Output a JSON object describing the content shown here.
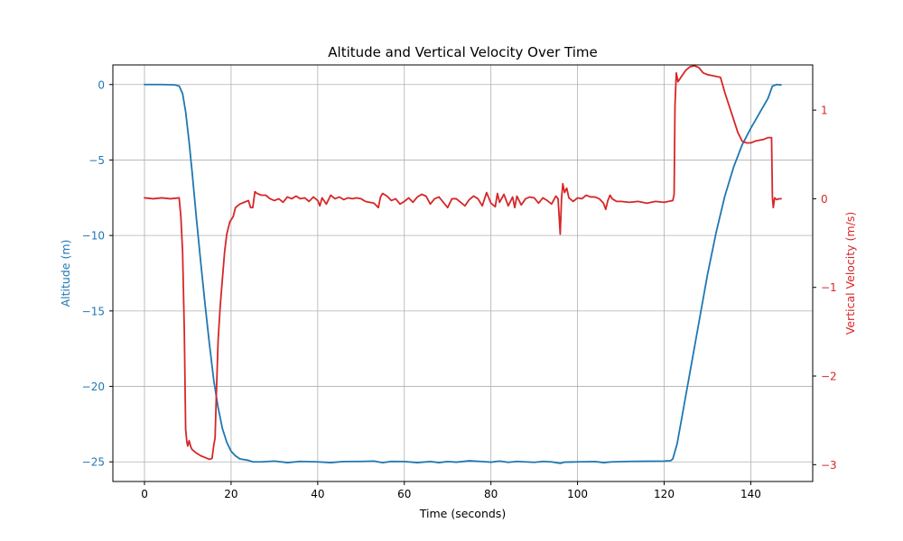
{
  "chart_data": {
    "type": "line",
    "title": "Altitude and Vertical Velocity Over Time",
    "xlabel": "Time (seconds)",
    "xlim": [
      -7.3,
      154.3
    ],
    "x_ticks": [
      0,
      20,
      40,
      60,
      80,
      100,
      120,
      140
    ],
    "grid": true,
    "colors": {
      "altitude": "#1f77b4",
      "velocity": "#d62728",
      "grid": "#b0b0b0",
      "axes": "#000000"
    },
    "y_left": {
      "label": "Altitude (m)",
      "lim": [
        -26.3,
        1.3
      ],
      "ticks": [
        0,
        -5,
        -10,
        -15,
        -20,
        -25
      ],
      "tick_labels": [
        "0",
        "−5",
        "−10",
        "−15",
        "−20",
        "−25"
      ]
    },
    "y_right": {
      "label": "Vertical Velocity (m/s)",
      "lim": [
        -3.19,
        1.51
      ],
      "ticks": [
        1,
        0,
        -1,
        -2,
        -3
      ],
      "tick_labels": [
        "1",
        "0",
        "−1",
        "−2",
        "−3"
      ]
    },
    "series": [
      {
        "axis": "left",
        "points": [
          [
            0,
            0
          ],
          [
            4,
            0
          ],
          [
            7,
            -0.02
          ],
          [
            8,
            -0.1
          ],
          [
            8.8,
            -0.6
          ],
          [
            9.5,
            -1.8
          ],
          [
            10.3,
            -3.8
          ],
          [
            11,
            -5.8
          ],
          [
            12,
            -8.9
          ],
          [
            13,
            -11.8
          ],
          [
            14,
            -14.6
          ],
          [
            15,
            -17.2
          ],
          [
            16,
            -19.6
          ],
          [
            17,
            -21.4
          ],
          [
            18,
            -22.8
          ],
          [
            19,
            -23.7
          ],
          [
            20,
            -24.3
          ],
          [
            21,
            -24.6
          ],
          [
            22,
            -24.8
          ],
          [
            23,
            -24.85
          ],
          [
            24,
            -24.9
          ],
          [
            25,
            -25.0
          ],
          [
            27,
            -25.0
          ],
          [
            30,
            -24.95
          ],
          [
            33,
            -25.05
          ],
          [
            36,
            -24.97
          ],
          [
            40,
            -25.0
          ],
          [
            43,
            -25.05
          ],
          [
            46,
            -24.98
          ],
          [
            50,
            -24.97
          ],
          [
            53,
            -24.95
          ],
          [
            55,
            -25.05
          ],
          [
            57,
            -24.97
          ],
          [
            60,
            -24.98
          ],
          [
            63,
            -25.05
          ],
          [
            66,
            -24.98
          ],
          [
            68,
            -25.05
          ],
          [
            70,
            -24.98
          ],
          [
            72,
            -25.02
          ],
          [
            75,
            -24.93
          ],
          [
            78,
            -24.98
          ],
          [
            80,
            -25.02
          ],
          [
            82,
            -24.95
          ],
          [
            84,
            -25.03
          ],
          [
            86,
            -24.97
          ],
          [
            88,
            -25.0
          ],
          [
            90,
            -25.03
          ],
          [
            92,
            -24.97
          ],
          [
            94,
            -25.0
          ],
          [
            96,
            -25.1
          ],
          [
            97,
            -25.02
          ],
          [
            100,
            -25.0
          ],
          [
            104,
            -24.98
          ],
          [
            106,
            -25.05
          ],
          [
            108,
            -25.0
          ],
          [
            112,
            -24.97
          ],
          [
            116,
            -24.96
          ],
          [
            120,
            -24.95
          ],
          [
            121.5,
            -24.92
          ],
          [
            122,
            -24.8
          ],
          [
            123,
            -23.8
          ],
          [
            124,
            -22.2
          ],
          [
            126,
            -19.0
          ],
          [
            128,
            -15.8
          ],
          [
            130,
            -12.6
          ],
          [
            132,
            -9.8
          ],
          [
            134,
            -7.4
          ],
          [
            136,
            -5.5
          ],
          [
            138,
            -4.0
          ],
          [
            140,
            -2.9
          ],
          [
            142,
            -1.9
          ],
          [
            144,
            -0.9
          ],
          [
            145,
            -0.1
          ],
          [
            146,
            0
          ],
          [
            147,
            -0.02
          ]
        ]
      },
      {
        "axis": "right",
        "points": [
          [
            0,
            0.01
          ],
          [
            2,
            0.0
          ],
          [
            4,
            0.01
          ],
          [
            6,
            0.0
          ],
          [
            8,
            0.01
          ],
          [
            8.4,
            -0.2
          ],
          [
            8.8,
            -0.6
          ],
          [
            9.2,
            -1.5
          ],
          [
            9.5,
            -2.6
          ],
          [
            9.8,
            -2.75
          ],
          [
            10,
            -2.79
          ],
          [
            10.3,
            -2.73
          ],
          [
            10.7,
            -2.8
          ],
          [
            11,
            -2.83
          ],
          [
            12,
            -2.87
          ],
          [
            13,
            -2.9
          ],
          [
            14,
            -2.92
          ],
          [
            15,
            -2.94
          ],
          [
            15.6,
            -2.93
          ],
          [
            16,
            -2.78
          ],
          [
            16.3,
            -2.7
          ],
          [
            16.6,
            -2.2
          ],
          [
            17,
            -1.6
          ],
          [
            17.5,
            -1.2
          ],
          [
            18,
            -0.9
          ],
          [
            18.5,
            -0.6
          ],
          [
            19,
            -0.4
          ],
          [
            19.7,
            -0.26
          ],
          [
            20.5,
            -0.2
          ],
          [
            21,
            -0.1
          ],
          [
            22,
            -0.06
          ],
          [
            23,
            -0.04
          ],
          [
            24,
            -0.02
          ],
          [
            24.5,
            -0.1
          ],
          [
            25,
            -0.1
          ],
          [
            25.5,
            0.08
          ],
          [
            26,
            0.06
          ],
          [
            27,
            0.04
          ],
          [
            28,
            0.04
          ],
          [
            29,
            0.0
          ],
          [
            30,
            -0.02
          ],
          [
            31,
            0.0
          ],
          [
            32,
            -0.04
          ],
          [
            33,
            0.02
          ],
          [
            34,
            0.0
          ],
          [
            35,
            0.03
          ],
          [
            36,
            0.0
          ],
          [
            37,
            0.01
          ],
          [
            38,
            -0.03
          ],
          [
            39,
            0.02
          ],
          [
            40,
            -0.02
          ],
          [
            40.5,
            -0.08
          ],
          [
            41,
            0.01
          ],
          [
            42,
            -0.06
          ],
          [
            43,
            0.04
          ],
          [
            44,
            0.0
          ],
          [
            45,
            0.02
          ],
          [
            46,
            -0.01
          ],
          [
            47,
            0.01
          ],
          [
            48,
            0.0
          ],
          [
            49,
            0.01
          ],
          [
            50,
            0.0
          ],
          [
            51,
            -0.03
          ],
          [
            52,
            -0.04
          ],
          [
            53,
            -0.05
          ],
          [
            54,
            -0.1
          ],
          [
            54.5,
            0.02
          ],
          [
            55,
            0.06
          ],
          [
            56,
            0.03
          ],
          [
            57,
            -0.02
          ],
          [
            58,
            0.0
          ],
          [
            59,
            -0.06
          ],
          [
            60,
            -0.03
          ],
          [
            61,
            0.01
          ],
          [
            62,
            -0.04
          ],
          [
            63,
            0.02
          ],
          [
            64,
            0.05
          ],
          [
            65,
            0.03
          ],
          [
            66,
            -0.06
          ],
          [
            67,
            0.0
          ],
          [
            68,
            0.02
          ],
          [
            69,
            -0.04
          ],
          [
            70,
            -0.1
          ],
          [
            71,
            0.0
          ],
          [
            72,
            0.0
          ],
          [
            73,
            -0.04
          ],
          [
            74,
            -0.08
          ],
          [
            75,
            -0.01
          ],
          [
            76,
            0.03
          ],
          [
            77,
            0.0
          ],
          [
            78,
            -0.08
          ],
          [
            79,
            0.07
          ],
          [
            80,
            -0.05
          ],
          [
            81,
            -0.09
          ],
          [
            81.5,
            0.06
          ],
          [
            82,
            -0.04
          ],
          [
            83,
            0.05
          ],
          [
            84,
            -0.08
          ],
          [
            85,
            0.02
          ],
          [
            85.5,
            -0.1
          ],
          [
            86,
            0.03
          ],
          [
            87,
            -0.07
          ],
          [
            88,
            0.0
          ],
          [
            89,
            0.02
          ],
          [
            90,
            0.01
          ],
          [
            91,
            -0.05
          ],
          [
            92,
            0.01
          ],
          [
            93,
            -0.02
          ],
          [
            94,
            -0.06
          ],
          [
            95,
            0.03
          ],
          [
            95.5,
            0.0
          ],
          [
            96,
            -0.4
          ],
          [
            96.3,
            0.0
          ],
          [
            96.6,
            0.17
          ],
          [
            97,
            0.07
          ],
          [
            97.5,
            0.12
          ],
          [
            98,
            0.01
          ],
          [
            99,
            -0.03
          ],
          [
            100,
            0.01
          ],
          [
            101,
            0.0
          ],
          [
            102,
            0.04
          ],
          [
            103,
            0.02
          ],
          [
            104,
            0.02
          ],
          [
            105,
            0.0
          ],
          [
            106,
            -0.05
          ],
          [
            106.5,
            -0.12
          ],
          [
            107,
            -0.02
          ],
          [
            107.5,
            0.04
          ],
          [
            108,
            0.0
          ],
          [
            109,
            -0.03
          ],
          [
            110,
            -0.03
          ],
          [
            112,
            -0.04
          ],
          [
            114,
            -0.03
          ],
          [
            116,
            -0.05
          ],
          [
            118,
            -0.03
          ],
          [
            120,
            -0.04
          ],
          [
            122,
            -0.02
          ],
          [
            122.3,
            0.05
          ],
          [
            122.5,
            1.05
          ],
          [
            122.8,
            1.42
          ],
          [
            123.2,
            1.32
          ],
          [
            124,
            1.38
          ],
          [
            125,
            1.45
          ],
          [
            126,
            1.49
          ],
          [
            127,
            1.5
          ],
          [
            128,
            1.48
          ],
          [
            129,
            1.42
          ],
          [
            130,
            1.4
          ],
          [
            131,
            1.39
          ],
          [
            132,
            1.38
          ],
          [
            133,
            1.37
          ],
          [
            134,
            1.2
          ],
          [
            135,
            1.05
          ],
          [
            136,
            0.9
          ],
          [
            137,
            0.75
          ],
          [
            138,
            0.65
          ],
          [
            139,
            0.63
          ],
          [
            140,
            0.63
          ],
          [
            141,
            0.65
          ],
          [
            142,
            0.66
          ],
          [
            143,
            0.67
          ],
          [
            144,
            0.69
          ],
          [
            144.8,
            0.69
          ],
          [
            145,
            0.01
          ],
          [
            145.2,
            -0.1
          ],
          [
            145.5,
            0.01
          ],
          [
            146,
            -0.01
          ],
          [
            146.5,
            0.0
          ],
          [
            147,
            0.0
          ]
        ]
      }
    ]
  }
}
